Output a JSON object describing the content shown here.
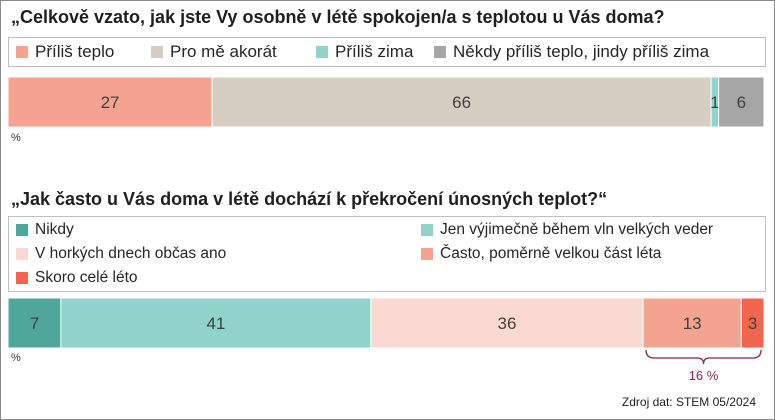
{
  "chart_data": [
    {
      "type": "bar",
      "orientation": "horizontal-stacked-100",
      "title": "„Celkově vzato, jak jste Vy osobně v létě spokojen/a s teplotou u Vás doma?",
      "unit_label": "%",
      "series": [
        {
          "name": "Příliš teplo",
          "value": 27,
          "color": "#F4A391"
        },
        {
          "name": "Pro mě akorát",
          "value": 66,
          "color": "#D6CEC3"
        },
        {
          "name": "Příliš zima",
          "value": 1,
          "color": "#8FD3CB"
        },
        {
          "name": "Někdy příliš teplo, jindy příliš zima",
          "value": 6,
          "color": "#A6A6A6"
        }
      ]
    },
    {
      "type": "bar",
      "orientation": "horizontal-stacked-100",
      "title": "„Jak často u Vás doma v létě dochází k překročení únosných teplot?“",
      "unit_label": "%",
      "series": [
        {
          "name": "Nikdy",
          "value": 7,
          "color": "#4FA79C"
        },
        {
          "name": "Jen výjimečně během vln velkých veder",
          "value": 41,
          "color": "#8FD3CB"
        },
        {
          "name": "V horkých dnech občas ano",
          "value": 36,
          "color": "#FAD9D2"
        },
        {
          "name": "Často, poměrně velkou část léta",
          "value": 13,
          "color": "#F4A391"
        },
        {
          "name": "Skoro celé léto",
          "value": 3,
          "color": "#F0664E"
        }
      ],
      "annotation": {
        "label": "16 %",
        "spans": [
          "Často, poměrně velkou část léta",
          "Skoro celé léto"
        ],
        "color": "#8B2252"
      }
    }
  ],
  "source": "Zdroj dat: STEM 05/2024"
}
